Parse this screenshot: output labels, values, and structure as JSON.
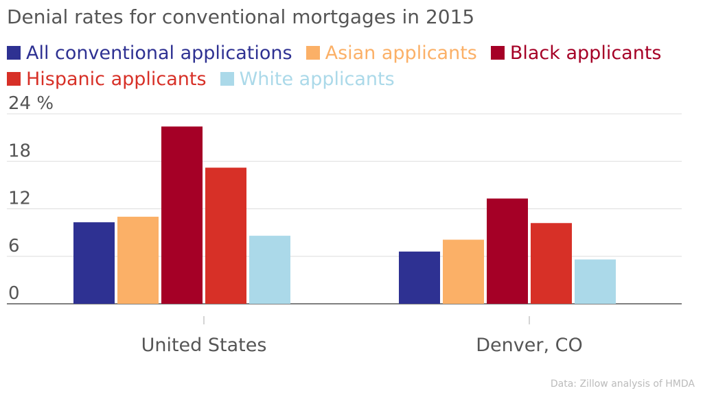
{
  "chart_data": {
    "type": "bar",
    "title": "Denial rates for conventional mortgages in 2015",
    "categories": [
      "United States",
      "Denver, CO"
    ],
    "series": [
      {
        "name": "All conventional applications",
        "color": "#2e3192",
        "values": [
          10.3,
          6.6
        ]
      },
      {
        "name": "Asian applicants",
        "color": "#fbb067",
        "values": [
          11.0,
          8.1
        ]
      },
      {
        "name": "Black applicants",
        "color": "#a50026",
        "values": [
          22.4,
          13.3
        ]
      },
      {
        "name": "Hispanic applicants",
        "color": "#d73027",
        "values": [
          17.2,
          10.2
        ]
      },
      {
        "name": "White applicants",
        "color": "#abd9e9",
        "values": [
          8.6,
          5.6
        ]
      }
    ],
    "y_ticks": [
      "0",
      "6",
      "12",
      "18",
      "24 %"
    ],
    "y_tick_values": [
      0,
      6,
      12,
      18,
      24
    ],
    "ylim": [
      0,
      24
    ],
    "xlabel": "",
    "ylabel": "",
    "grid": true,
    "legend_position": "top",
    "source": "Data: Zillow analysis of HMDA"
  }
}
